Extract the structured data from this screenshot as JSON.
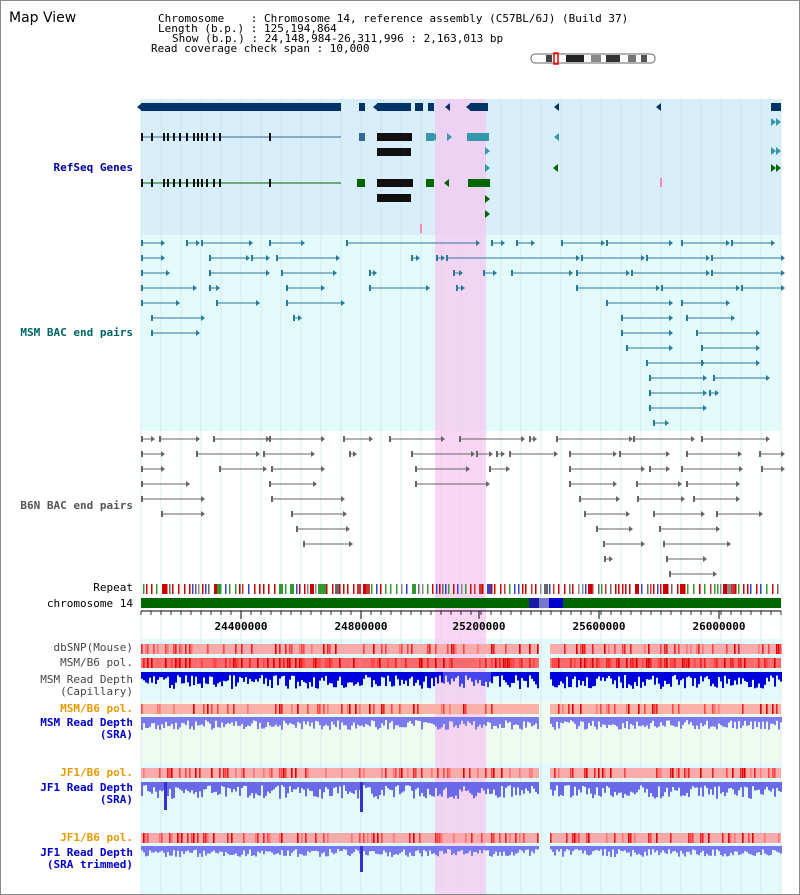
{
  "title": "Map View",
  "info": {
    "chrom_line": "Chromosome    : Chromosome 14, reference assembly (C57BL/6J) (Build 37)",
    "length_line": "Length (b.p.) : 125,194,864",
    "show_line": "Show (b.p.) : 24,148,984-26,311,996 : 2,163,013 bp",
    "coverage_line": "Read coverage check span : 10,000"
  },
  "tracks": {
    "refseq": "RefSeq Genes",
    "msm_bac": "MSM BAC end pairs",
    "b6n_bac": "B6N BAC end pairs",
    "repeat": "Repeat",
    "chromosome": "chromosome 14",
    "dbsnp": "dbSNP(Mouse)",
    "msm_pol": "MSM/B6 pol.",
    "msm_depth_cap_1": "MSM Read Depth",
    "msm_depth_cap_2": "(Capillary)",
    "msm_pol_sra": "MSM/B6 pol.",
    "msm_depth_sra_1": "MSM Read Depth",
    "msm_depth_sra_2": "(SRA)",
    "jf1_pol": "JF1/B6 pol.",
    "jf1_depth_1": "JF1 Read Depth",
    "jf1_depth_2": "(SRA)",
    "jf1_pol_2": "JF1/B6 pol.",
    "jf1_trim_1": "JF1 Read Depth",
    "jf1_trim_2": "(SRA trimmed)"
  },
  "axis": {
    "ticks": [
      "24400000",
      "24800000",
      "25200000",
      "25600000",
      "26000000"
    ]
  },
  "colors": {
    "refseq_label": "#000099",
    "msm_label": "#006666",
    "b6n_label": "#555555",
    "pol_label": "#e69900",
    "depth_label": "#0000cc",
    "highlight": "#f5c8f0",
    "refseq_bg": "#d8eefa",
    "msm_bg": "#e2fafa"
  }
}
